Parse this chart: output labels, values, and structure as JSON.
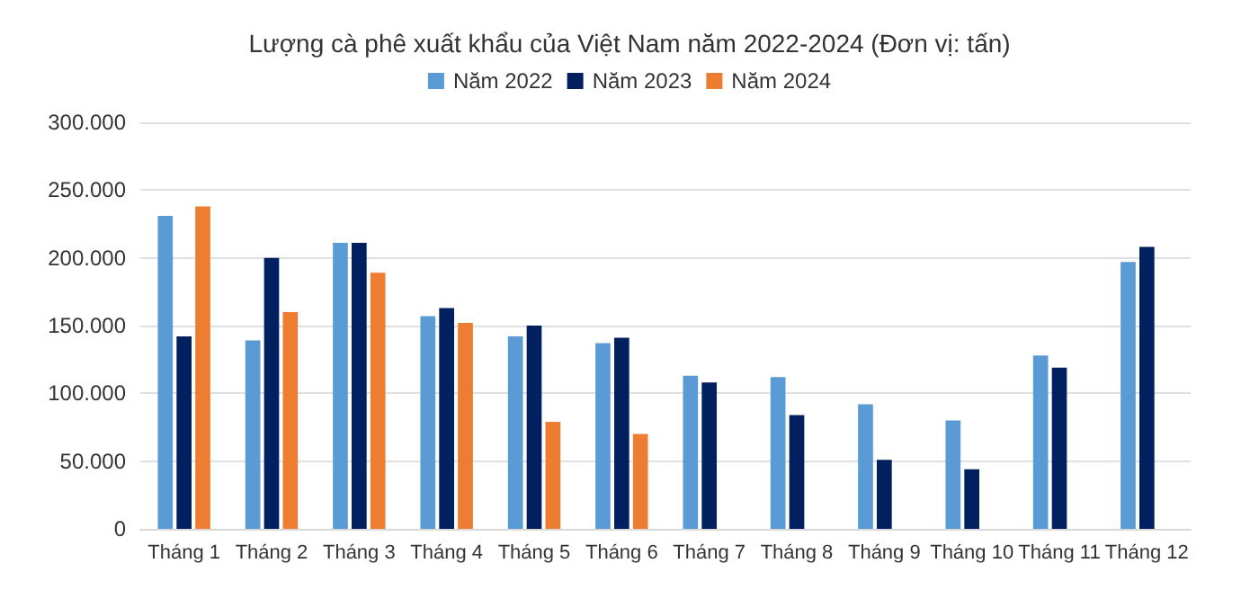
{
  "chart_data": {
    "type": "bar",
    "title": "Lượng cà phê xuất khẩu của Việt Nam năm 2022-2024 (Đơn vị: tấn)",
    "categories": [
      "Tháng 1",
      "Tháng 2",
      "Tháng 3",
      "Tháng 4",
      "Tháng 5",
      "Tháng 6",
      "Tháng 7",
      "Tháng 8",
      "Tháng 9",
      "Tháng 10",
      "Tháng 11",
      "Tháng 12"
    ],
    "series": [
      {
        "name": "Năm 2022",
        "color": "#5b9bd5",
        "values": [
          231000,
          139000,
          211000,
          157000,
          142000,
          137000,
          113000,
          112000,
          92000,
          80000,
          128000,
          197000
        ]
      },
      {
        "name": "Năm 2023",
        "color": "#002060",
        "values": [
          142000,
          200000,
          211000,
          163000,
          150000,
          141000,
          108000,
          84000,
          51000,
          44000,
          119000,
          208000
        ]
      },
      {
        "name": "Năm 2024",
        "color": "#ed7d31",
        "values": [
          238000,
          160000,
          189000,
          152000,
          79000,
          70000,
          null,
          null,
          null,
          null,
          null,
          null
        ]
      }
    ],
    "ylim": [
      0,
      300000
    ],
    "yticks": [
      0,
      {
        "value": 50000,
        "label": "50.000"
      },
      {
        "value": 100000,
        "label": "100.000"
      },
      {
        "value": 150000,
        "label": "150.000"
      },
      {
        "value": 200000,
        "label": "200.000"
      },
      {
        "value": 250000,
        "label": "250.000"
      },
      {
        "value": 300000,
        "label": "300.000"
      }
    ],
    "grid": "y",
    "legend": "top"
  }
}
